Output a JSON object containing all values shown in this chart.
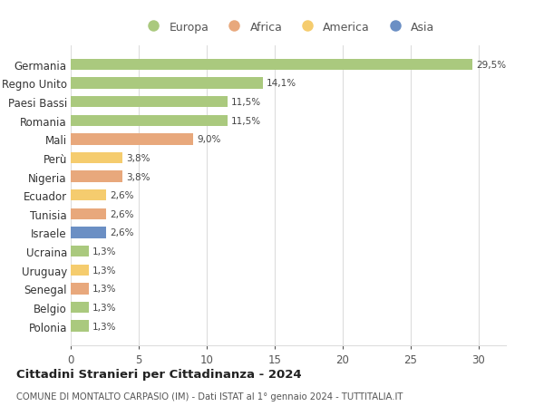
{
  "categories": [
    "Germania",
    "Regno Unito",
    "Paesi Bassi",
    "Romania",
    "Mali",
    "Perù",
    "Nigeria",
    "Ecuador",
    "Tunisia",
    "Israele",
    "Ucraina",
    "Uruguay",
    "Senegal",
    "Belgio",
    "Polonia"
  ],
  "values": [
    29.5,
    14.1,
    11.5,
    11.5,
    9.0,
    3.8,
    3.8,
    2.6,
    2.6,
    2.6,
    1.3,
    1.3,
    1.3,
    1.3,
    1.3
  ],
  "labels": [
    "29,5%",
    "14,1%",
    "11,5%",
    "11,5%",
    "9,0%",
    "3,8%",
    "3,8%",
    "2,6%",
    "2,6%",
    "2,6%",
    "1,3%",
    "1,3%",
    "1,3%",
    "1,3%",
    "1,3%"
  ],
  "colors": [
    "#aac97e",
    "#aac97e",
    "#aac97e",
    "#aac97e",
    "#e8a87c",
    "#f5cc6e",
    "#e8a87c",
    "#f5cc6e",
    "#e8a87c",
    "#6b8fc4",
    "#aac97e",
    "#f5cc6e",
    "#e8a87c",
    "#aac97e",
    "#aac97e"
  ],
  "legend_labels": [
    "Europa",
    "Africa",
    "America",
    "Asia"
  ],
  "legend_colors": [
    "#aac97e",
    "#e8a87c",
    "#f5cc6e",
    "#6b8fc4"
  ],
  "title": "Cittadini Stranieri per Cittadinanza - 2024",
  "subtitle": "COMUNE DI MONTALTO CARPASIO (IM) - Dati ISTAT al 1° gennaio 2024 - TUTTITALIA.IT",
  "xlim": [
    0,
    32
  ],
  "xticks": [
    0,
    5,
    10,
    15,
    20,
    25,
    30
  ],
  "background_color": "#ffffff",
  "grid_color": "#dddddd",
  "bar_height": 0.6
}
